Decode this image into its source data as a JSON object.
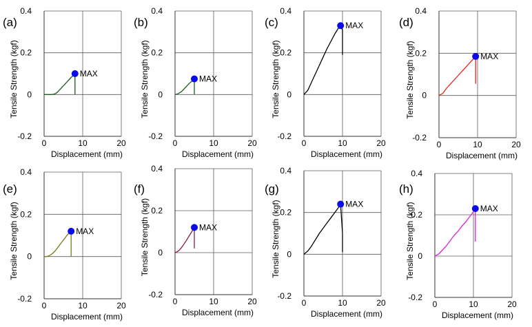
{
  "figure": {
    "max_label": "MAX",
    "xlabel": "Displacement (mm)",
    "ylabel": "Tensile Strength (kgf)"
  },
  "chart_data": [
    {
      "type": "line",
      "panel": "(a)",
      "color": "#1a5a1a",
      "xlim": [
        0,
        20
      ],
      "ylim": [
        -0.2,
        0.4
      ],
      "xticks": [
        0,
        10,
        20
      ],
      "yticks": [
        -0.2,
        0,
        0.2,
        0.4
      ],
      "x": [
        0,
        0.5,
        1,
        1.5,
        2,
        2.5,
        3,
        3.5,
        4,
        4.5,
        5,
        5.5,
        6,
        6.5,
        7,
        7.5,
        8,
        8,
        8
      ],
      "y": [
        0,
        0,
        0,
        0,
        0,
        0.002,
        0.005,
        0.012,
        0.022,
        0.032,
        0.042,
        0.052,
        0.062,
        0.072,
        0.082,
        0.09,
        0.1,
        0.05,
        0
      ],
      "max_point": {
        "x": 8,
        "y": 0.1
      }
    },
    {
      "type": "line",
      "panel": "(b)",
      "color": "#1a5a1a",
      "xlim": [
        0,
        20
      ],
      "ylim": [
        -0.2,
        0.4
      ],
      "xticks": [
        0,
        10,
        20
      ],
      "yticks": [
        -0.2,
        0,
        0.2,
        0.4
      ],
      "x": [
        0,
        0.5,
        1,
        1.5,
        2,
        2.5,
        3,
        3.5,
        4,
        4.5,
        5,
        5,
        5
      ],
      "y": [
        0,
        0.002,
        0.006,
        0.012,
        0.02,
        0.03,
        0.04,
        0.05,
        0.058,
        0.066,
        0.075,
        0.04,
        0
      ],
      "max_point": {
        "x": 5,
        "y": 0.075
      }
    },
    {
      "type": "line",
      "panel": "(c)",
      "color": "#000000",
      "xlim": [
        0,
        20
      ],
      "ylim": [
        -0.2,
        0.4
      ],
      "xticks": [
        0,
        10,
        20
      ],
      "yticks": [
        -0.2,
        0,
        0.2,
        0.4
      ],
      "x": [
        0,
        1,
        2,
        3,
        4,
        5,
        6,
        7,
        8,
        9,
        9.5,
        10,
        10
      ],
      "y": [
        0,
        0.02,
        0.06,
        0.1,
        0.14,
        0.18,
        0.22,
        0.255,
        0.29,
        0.32,
        0.33,
        0.31,
        0.19
      ],
      "max_point": {
        "x": 9.5,
        "y": 0.33
      }
    },
    {
      "type": "line",
      "panel": "(d)",
      "color": "#e8251a",
      "xlim": [
        0,
        20
      ],
      "ylim": [
        -0.2,
        0.4
      ],
      "xticks": [
        0,
        10,
        20
      ],
      "yticks": [
        -0.2,
        0,
        0.2,
        0.4
      ],
      "x": [
        0,
        1,
        2,
        3,
        4,
        5,
        6,
        7,
        8,
        9,
        9.5,
        9.5,
        9.5
      ],
      "y": [
        0,
        0.01,
        0.035,
        0.055,
        0.075,
        0.095,
        0.115,
        0.135,
        0.155,
        0.175,
        0.185,
        0.12,
        0.055
      ],
      "max_point": {
        "x": 9.5,
        "y": 0.185
      }
    },
    {
      "type": "line",
      "panel": "(e)",
      "color": "#7a7a10",
      "xlim": [
        0,
        20
      ],
      "ylim": [
        -0.2,
        0.4
      ],
      "xticks": [
        0,
        10,
        20
      ],
      "yticks": [
        -0.2,
        0,
        0.2,
        0.4
      ],
      "x": [
        0,
        0.5,
        1,
        1.5,
        2,
        2.5,
        3,
        3.5,
        4,
        4.5,
        5,
        5.5,
        6,
        6.5,
        7,
        7,
        7
      ],
      "y": [
        0,
        0,
        0.002,
        0.006,
        0.012,
        0.02,
        0.03,
        0.042,
        0.054,
        0.066,
        0.078,
        0.09,
        0.102,
        0.112,
        0.12,
        0.06,
        0
      ],
      "max_point": {
        "x": 7,
        "y": 0.12
      }
    },
    {
      "type": "line",
      "panel": "(f)",
      "color": "#8b1c3a",
      "xlim": [
        0,
        20
      ],
      "ylim": [
        -0.2,
        0.4
      ],
      "xticks": [
        0,
        10,
        20
      ],
      "yticks": [
        -0.2,
        0,
        0.2,
        0.4
      ],
      "x": [
        0,
        0.5,
        1,
        1.5,
        2,
        2.5,
        3,
        3.5,
        4,
        4.5,
        5,
        5,
        5
      ],
      "y": [
        0,
        0.004,
        0.01,
        0.02,
        0.032,
        0.046,
        0.06,
        0.075,
        0.09,
        0.105,
        0.12,
        0.07,
        0.02
      ],
      "max_point": {
        "x": 5,
        "y": 0.12
      }
    },
    {
      "type": "line",
      "panel": "(g)",
      "color": "#000000",
      "xlim": [
        0,
        20
      ],
      "ylim": [
        -0.2,
        0.4
      ],
      "xticks": [
        0,
        10,
        20
      ],
      "yticks": [
        -0.2,
        0,
        0.2,
        0.4
      ],
      "x": [
        0,
        1,
        2,
        3,
        4,
        5,
        6,
        7,
        8,
        9,
        9.5,
        10,
        10
      ],
      "y": [
        0,
        0.015,
        0.04,
        0.07,
        0.1,
        0.125,
        0.15,
        0.175,
        0.2,
        0.225,
        0.24,
        0.1,
        0.01
      ],
      "max_point": {
        "x": 9.5,
        "y": 0.24
      }
    },
    {
      "type": "line",
      "panel": "(h)",
      "color": "#e020e0",
      "xlim": [
        0,
        20
      ],
      "ylim": [
        -0.2,
        0.4
      ],
      "xticks": [
        0,
        10,
        20
      ],
      "yticks": [
        -0.2,
        0,
        0.2,
        0.4
      ],
      "x": [
        0,
        1,
        2,
        3,
        4,
        5,
        6,
        7,
        8,
        9,
        10,
        10.5,
        10.5,
        10.5
      ],
      "y": [
        0,
        0.01,
        0.03,
        0.05,
        0.075,
        0.1,
        0.12,
        0.145,
        0.165,
        0.19,
        0.215,
        0.23,
        0.15,
        0.07
      ],
      "max_point": {
        "x": 10.5,
        "y": 0.23
      }
    }
  ]
}
